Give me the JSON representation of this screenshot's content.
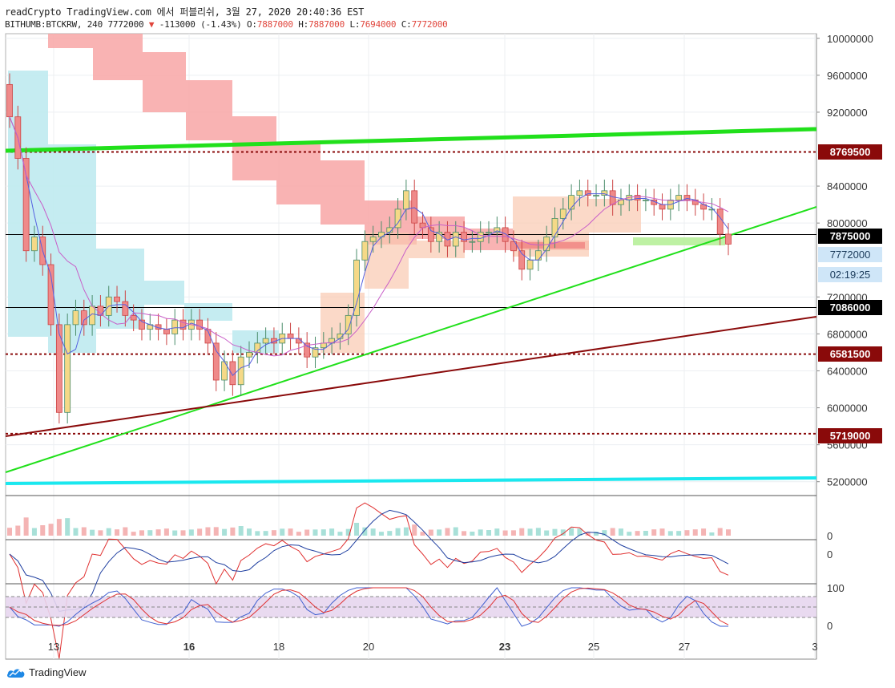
{
  "header": {
    "line1": "readCrypto TradingView.com 에서 퍼블리쉬, 3월 27, 2020 20:40:36 EST",
    "symbol": "BITHUMB:BTCKRW, 240 7772000",
    "change": "-113000 (-1.43%)",
    "o_label": "O:",
    "o_value": "7887000",
    "h_label": "H:",
    "h_value": "7887000",
    "l_label": "L:",
    "l_value": "7694000",
    "c_label": "C:",
    "c_value": "7772000",
    "down_arrow": "▼"
  },
  "price_tags": [
    {
      "text": "8769500",
      "style": "dark"
    },
    {
      "text": "7875000",
      "style": "black"
    },
    {
      "text": "7772000",
      "style": "light"
    },
    {
      "text": "02:19:25",
      "style": "light"
    },
    {
      "text": "7086000",
      "style": "black"
    },
    {
      "text": "6581500",
      "style": "dark"
    },
    {
      "text": "5719000",
      "style": "dark"
    }
  ],
  "logo_text": "TradingView",
  "chart_data": {
    "type": "candlestick",
    "symbol": "BITHUMB:BTCKRW",
    "interval": "240",
    "price_axis": {
      "ticks": [
        10000000,
        9600000,
        9200000,
        8400000,
        8000000,
        7200000,
        6800000,
        6400000,
        6000000,
        5600000,
        5200000
      ],
      "ylim": [
        5050000,
        10050000
      ]
    },
    "x_axis": {
      "ticks": [
        "13",
        "16",
        "18",
        "20",
        "23",
        "25",
        "27",
        "3"
      ],
      "bold_ticks": [
        "16",
        "23"
      ]
    },
    "horizontal_levels": [
      {
        "value": 8769500,
        "style": "dotted",
        "color": "#8a0a0a"
      },
      {
        "value": 7875000,
        "style": "solid",
        "color": "#000000"
      },
      {
        "value": 7086000,
        "style": "solid",
        "color": "#000000"
      },
      {
        "value": 6581500,
        "style": "dotted",
        "color": "#8a0a0a"
      },
      {
        "value": 5719000,
        "style": "dotted",
        "color": "#8a0a0a"
      }
    ],
    "current_price": 7772000,
    "countdown": "02:19:25",
    "closes": [
      9150000,
      8700000,
      7700000,
      7850000,
      7550000,
      6900000,
      5950000,
      6900000,
      7050000,
      6900000,
      7100000,
      7000000,
      7200000,
      7150000,
      7000000,
      6950000,
      6850000,
      6900000,
      6850000,
      6800000,
      6950000,
      6850000,
      6950000,
      6850000,
      6700000,
      6300000,
      6500000,
      6250000,
      6550000,
      6600000,
      6700000,
      6750000,
      6700000,
      6800000,
      6750000,
      6700000,
      6550000,
      6650000,
      6700000,
      6750000,
      6800000,
      7000000,
      7600000,
      7800000,
      7850000,
      7900000,
      7950000,
      8150000,
      8350000,
      8000000,
      7950000,
      7800000,
      7900000,
      7750000,
      7900000,
      7800000,
      7800000,
      7900000,
      7900000,
      7950000,
      7800000,
      7700000,
      7500000,
      7600000,
      7700000,
      7850000,
      8050000,
      8150000,
      8300000,
      8350000,
      8300000,
      8300000,
      8350000,
      8200000,
      8250000,
      8300000,
      8250000,
      8250000,
      8200000,
      8150000,
      8250000,
      8300000,
      8250000,
      8200000,
      8150000,
      8150000,
      7880000,
      7772000
    ],
    "volume_axis_ticks": [
      0
    ],
    "macd_axis_ticks": [
      0
    ],
    "stoch_axis_ticks": [
      100,
      0
    ],
    "trendlines": [
      {
        "color": "#21e01b"
      },
      {
        "color": "#21e01b"
      },
      {
        "color": "#8a0a0a"
      },
      {
        "color": "#1ae8ef"
      }
    ],
    "colors": {
      "up_candle": "#f5d987",
      "down_candle": "#ef8a8a",
      "cloud_bear": "#f8a6a6",
      "cloud_bull": "#bfeaf0",
      "conversion_line": "#5560e0",
      "base_line": "#c85ec8"
    }
  }
}
